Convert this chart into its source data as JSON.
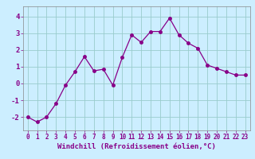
{
  "x": [
    0,
    1,
    2,
    3,
    4,
    5,
    6,
    7,
    8,
    9,
    10,
    11,
    12,
    13,
    14,
    15,
    16,
    17,
    18,
    19,
    20,
    21,
    22,
    23
  ],
  "y": [
    -2.0,
    -2.3,
    -2.0,
    -1.2,
    -0.1,
    0.7,
    1.6,
    0.75,
    0.85,
    -0.1,
    1.55,
    2.9,
    2.45,
    3.1,
    3.1,
    3.9,
    2.9,
    2.4,
    2.1,
    1.1,
    0.9,
    0.7,
    0.5,
    0.5
  ],
  "line_color": "#880088",
  "marker": "o",
  "markersize": 2.5,
  "linewidth": 0.9,
  "xlabel": "Windchill (Refroidissement éolien,°C)",
  "xlabel_fontsize": 6.5,
  "ylabel_ticks": [
    -2,
    -1,
    0,
    1,
    2,
    3,
    4
  ],
  "xtick_labels": [
    "0",
    "1",
    "2",
    "3",
    "4",
    "5",
    "6",
    "7",
    "8",
    "9",
    "10",
    "11",
    "12",
    "13",
    "14",
    "15",
    "16",
    "17",
    "18",
    "19",
    "20",
    "21",
    "22",
    "23"
  ],
  "ylim": [
    -2.8,
    4.6
  ],
  "xlim": [
    -0.5,
    23.5
  ],
  "bg_color": "#cceeff",
  "grid_color": "#99cccc",
  "ytick_fontsize": 6.5,
  "xtick_fontsize": 5.5
}
